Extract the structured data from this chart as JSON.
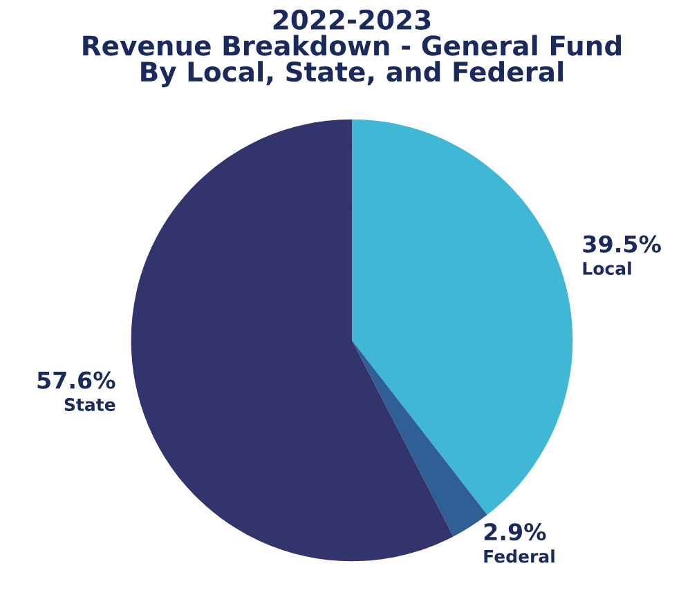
{
  "chart_data": {
    "type": "pie",
    "title": "2022-2023\nRevenue Breakdown - General Fund\nBy Local, State, and Federal",
    "categories": [
      "Local",
      "Federal",
      "State"
    ],
    "values": [
      39.5,
      2.9,
      57.6
    ],
    "value_labels": [
      "39.5%",
      "2.9%",
      "57.6%"
    ],
    "colors": [
      "#41b7d6",
      "#2f5f95",
      "#32346b"
    ],
    "legend": false
  }
}
